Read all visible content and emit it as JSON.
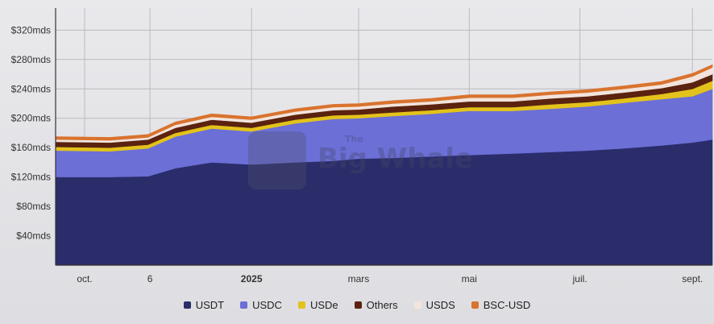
{
  "watermark": {
    "brand": "The Big Whale"
  },
  "chart_data": {
    "type": "area",
    "stacked": true,
    "x_ticks": [
      "oct.",
      "6",
      "2025",
      "mars",
      "mai",
      "juil.",
      "sept."
    ],
    "y_ticks": [
      "$40mds",
      "$80mds",
      "$120mds",
      "$160mds",
      "$200mds",
      "$240mds",
      "$280mds",
      "$320mds"
    ],
    "ylim": [
      0,
      350
    ],
    "y_unit": "mds",
    "grid": true,
    "legend_position": "bottom",
    "x": [
      "2024-09-15",
      "2024-10-15",
      "2024-11-05",
      "2024-11-20",
      "2024-12-10",
      "2025-01-01",
      "2025-01-25",
      "2025-02-15",
      "2025-03-01",
      "2025-03-20",
      "2025-04-10",
      "2025-05-01",
      "2025-05-25",
      "2025-06-15",
      "2025-07-05",
      "2025-07-25",
      "2025-08-15",
      "2025-09-01",
      "2025-09-12"
    ],
    "series": [
      {
        "name": "USDT",
        "color": "#2b2d6b",
        "values": [
          120,
          120,
          121,
          132,
          140,
          137,
          140,
          142,
          145,
          146,
          148,
          150,
          152,
          154,
          156,
          159,
          163,
          167,
          171
        ]
      },
      {
        "name": "USDC",
        "color": "#6b6fd6",
        "values": [
          36,
          35,
          38,
          43,
          46,
          45,
          53,
          57,
          55,
          57,
          58,
          60,
          58,
          59,
          60,
          62,
          63,
          63,
          69
        ]
      },
      {
        "name": "USDe",
        "color": "#e3c21b",
        "values": [
          5,
          5,
          5,
          5,
          5,
          5,
          5,
          5,
          5,
          5,
          5,
          5,
          5,
          6,
          6,
          6,
          7,
          10,
          11
        ]
      },
      {
        "name": "Others",
        "color": "#5a220f",
        "values": [
          7,
          7,
          7,
          7,
          7,
          7,
          7,
          7,
          7,
          8,
          8,
          8,
          8,
          8,
          8,
          8,
          8,
          9,
          9
        ]
      },
      {
        "name": "USDS",
        "color": "#f2e4dc",
        "values": [
          3,
          3,
          3,
          4,
          4,
          4,
          4,
          4,
          4,
          4,
          4,
          5,
          5,
          5,
          5,
          5,
          5,
          8,
          9
        ]
      },
      {
        "name": "BSC-USD",
        "color": "#d9732e",
        "values": [
          4,
          4,
          4,
          4,
          4,
          4,
          4,
          4,
          4,
          4,
          4,
          4,
          4,
          4,
          4,
          4,
          4,
          4,
          4
        ]
      }
    ]
  }
}
